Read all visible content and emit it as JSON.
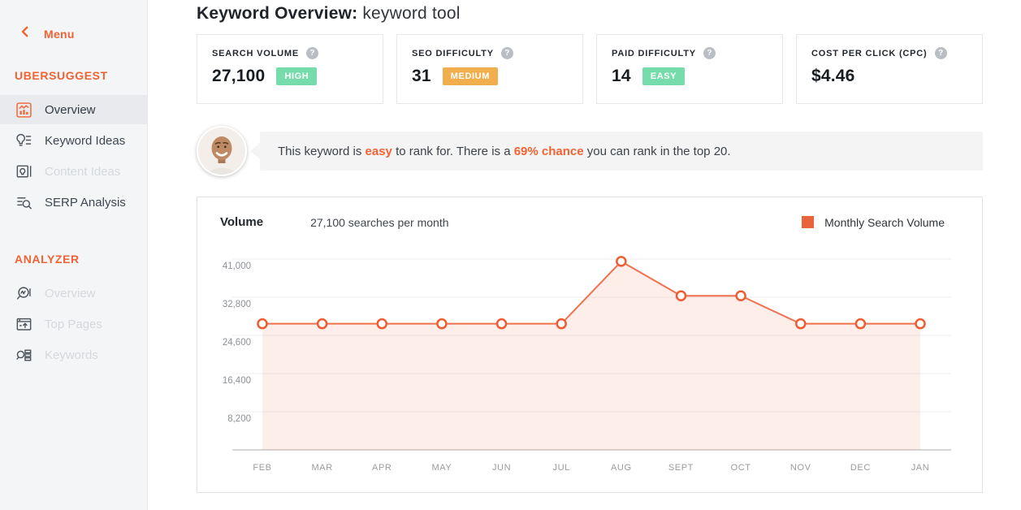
{
  "icons": {
    "help": "?"
  },
  "sidebar": {
    "menu_label": "Menu",
    "sections": [
      {
        "title": "UBERSUGGEST",
        "items": [
          {
            "label": "Overview",
            "icon": "overview-chart-icon",
            "active": true,
            "disabled": false
          },
          {
            "label": "Keyword Ideas",
            "icon": "keyword-ideas-icon",
            "active": false,
            "disabled": false
          },
          {
            "label": "Content Ideas",
            "icon": "content-ideas-icon",
            "active": false,
            "disabled": true
          },
          {
            "label": "SERP Analysis",
            "icon": "serp-analysis-icon",
            "active": false,
            "disabled": false
          }
        ]
      },
      {
        "title": "ANALYZER",
        "items": [
          {
            "label": "Overview",
            "icon": "analyzer-overview-icon",
            "active": false,
            "disabled": true
          },
          {
            "label": "Top Pages",
            "icon": "top-pages-icon",
            "active": false,
            "disabled": true
          },
          {
            "label": "Keywords",
            "icon": "keywords-icon",
            "active": false,
            "disabled": true
          }
        ]
      }
    ]
  },
  "header": {
    "title_bold": "Keyword Overview:",
    "title_keyword": "keyword tool"
  },
  "stats": [
    {
      "label": "SEARCH VOLUME",
      "value": "27,100",
      "badge": "HIGH",
      "badge_color": "#76dcab"
    },
    {
      "label": "SEO DIFFICULTY",
      "value": "31",
      "badge": "MEDIUM",
      "badge_color": "#f0ae4d"
    },
    {
      "label": "PAID DIFFICULTY",
      "value": "14",
      "badge": "EASY",
      "badge_color": "#76dcab"
    },
    {
      "label": "COST PER CLICK (CPC)",
      "value": "$4.46",
      "badge": null,
      "badge_color": null
    }
  ],
  "advice": {
    "part1": "This keyword is ",
    "highlight1": "easy",
    "part2": " to rank for. There is a ",
    "highlight2": "69% chance",
    "part3": " you can rank in the top 20."
  },
  "chart_header": {
    "volume_label": "Volume",
    "subtitle": "27,100 searches per month",
    "legend": "Monthly Search Volume",
    "legend_color": "#e8643c"
  },
  "chart_data": {
    "type": "area",
    "title": "Monthly Search Volume",
    "categories": [
      "FEB",
      "MAR",
      "APR",
      "MAY",
      "JUN",
      "JUL",
      "AUG",
      "SEPT",
      "OCT",
      "NOV",
      "DEC",
      "JAN"
    ],
    "values": [
      27100,
      27100,
      27100,
      27100,
      27100,
      27100,
      40500,
      33100,
      33100,
      27100,
      27100,
      27100
    ],
    "xlabel": "",
    "ylabel": "",
    "y_ticks": [
      8200,
      16400,
      24600,
      32800,
      41000
    ],
    "ylim": [
      0,
      46000
    ],
    "grid": true,
    "legend_position": "top-right",
    "line_color": "#f0714f",
    "point_stroke_color": "#ee5d31",
    "fill_color": "rgba(240,113,79,0.12)"
  },
  "colors": {
    "brand_orange": "#f16334",
    "sidebar_bg": "#f4f5f7",
    "active_item_bg": "#e8eaed",
    "badge_green": "#76dcab",
    "badge_amber": "#f0ae4d",
    "bubble_bg": "#f4f4f4"
  }
}
